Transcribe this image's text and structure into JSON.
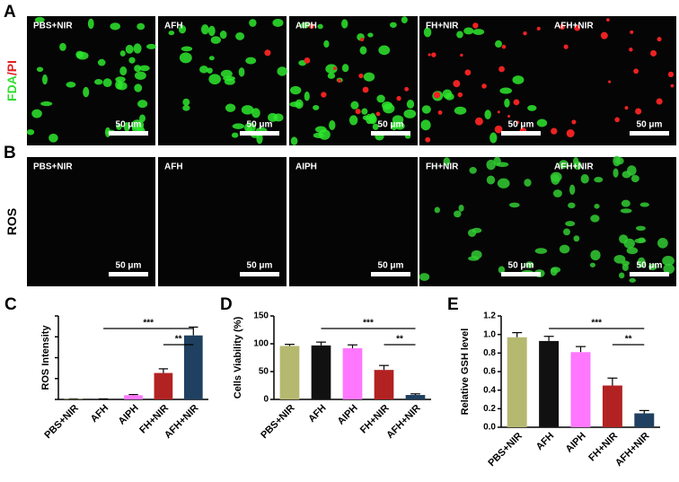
{
  "images": [
    {
      "panel": "A",
      "label_parts": [
        {
          "text": "FDA",
          "color": "#33dd33"
        },
        {
          "text": "/PI",
          "color": "#e02020"
        }
      ],
      "tiles": [
        {
          "label": "PBS+NIR",
          "scale": "50 μm"
        },
        {
          "label": "AFH",
          "scale": "50 μm"
        },
        {
          "label": "AIPH",
          "scale": "50 μm"
        },
        {
          "label": "FH+NIR",
          "scale": "50 μm"
        },
        {
          "label": "AFH+NIR",
          "scale": "50 μm"
        }
      ]
    },
    {
      "panel": "B",
      "label_parts": [
        {
          "text": "ROS",
          "color": "#000000"
        }
      ],
      "tiles": [
        {
          "label": "PBS+NIR",
          "scale": "50 μm"
        },
        {
          "label": "AFH",
          "scale": "50 μm"
        },
        {
          "label": "AIPH",
          "scale": "50 μm"
        },
        {
          "label": "FH+NIR",
          "scale": "50 μm"
        },
        {
          "label": "AFH+NIR",
          "scale": "50 μm"
        }
      ]
    }
  ],
  "chart_data": [
    {
      "type": "bar",
      "panel": "C",
      "ylabel": "ROS Intensity",
      "categories": [
        "PBS+NIR",
        "AFH",
        "AIPH",
        "FH+NIR",
        "AFH+NIR"
      ],
      "values": [
        0.05,
        0.05,
        0.6,
        3.8,
        9.2
      ],
      "errors": [
        0.03,
        0.03,
        0.1,
        0.6,
        1.2
      ],
      "colors": [
        "#b5b86f",
        "#111111",
        "#ff77ff",
        "#b22222",
        "#1f4060"
      ],
      "ylim": [
        0,
        12
      ],
      "yticks": [
        0,
        3,
        6,
        9,
        12
      ],
      "significance": [
        {
          "text": "***",
          "from": "AFH",
          "to": "AFH+NIR"
        },
        {
          "text": "**",
          "from": "FH+NIR",
          "to": "AFH+NIR"
        }
      ]
    },
    {
      "type": "bar",
      "panel": "D",
      "ylabel": "Cells Viability (%)",
      "categories": [
        "PBS+NIR",
        "AFH",
        "AIPH",
        "FH+NIR",
        "AFH+NIR"
      ],
      "values": [
        96,
        97,
        92,
        53,
        8
      ],
      "errors": [
        3,
        6,
        6,
        8,
        2
      ],
      "colors": [
        "#b5b86f",
        "#111111",
        "#ff77ff",
        "#b22222",
        "#1f4060"
      ],
      "ylim": [
        0,
        150
      ],
      "yticks": [
        0,
        50,
        100,
        150
      ],
      "show_tick_labels": true,
      "significance": [
        {
          "text": "***",
          "from": "AFH",
          "to": "AFH+NIR"
        },
        {
          "text": "**",
          "from": "FH+NIR",
          "to": "AFH+NIR"
        }
      ]
    },
    {
      "type": "bar",
      "panel": "E",
      "ylabel": "Relative GSH level",
      "categories": [
        "PBS+NIR",
        "AFH",
        "AIPH",
        "FH+NIR",
        "AFH+NIR"
      ],
      "values": [
        0.97,
        0.93,
        0.81,
        0.45,
        0.15
      ],
      "errors": [
        0.05,
        0.05,
        0.06,
        0.08,
        0.03
      ],
      "colors": [
        "#b5b86f",
        "#111111",
        "#ff77ff",
        "#b22222",
        "#1f4060"
      ],
      "ylim": [
        0,
        1.2
      ],
      "yticks": [
        {
          "value": 0,
          "label": "0.0"
        },
        {
          "value": 0.2,
          "label": "0.2"
        },
        {
          "value": 0.4,
          "label": "0.4"
        },
        {
          "value": 0.6,
          "label": "0.6"
        },
        {
          "value": 0.8,
          "label": "0.8"
        },
        {
          "value": 1.0,
          "label": "1.0"
        },
        {
          "value": 1.2,
          "label": "1.2"
        }
      ],
      "show_tick_labels": true,
      "significance": [
        {
          "text": "***",
          "from": "AFH",
          "to": "AFH+NIR"
        },
        {
          "text": "**",
          "from": "FH+NIR",
          "to": "AFH+NIR"
        }
      ]
    }
  ]
}
